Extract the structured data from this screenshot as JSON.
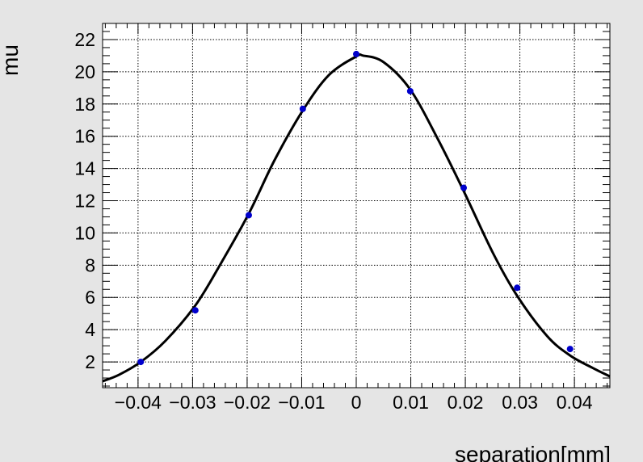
{
  "chart_data": {
    "type": "scatter",
    "xlabel": "separation[mm]",
    "ylabel": "mu",
    "xlim": [
      -0.0465,
      0.0465
    ],
    "ylim": [
      0.4,
      23.0
    ],
    "xticks": [
      -0.04,
      -0.03,
      -0.02,
      -0.01,
      0,
      0.01,
      0.02,
      0.03,
      0.04
    ],
    "xtick_labels": [
      "−0.04",
      "−0.03",
      "−0.02",
      "−0.01",
      "0",
      "0.01",
      "0.02",
      "0.03",
      "0.04"
    ],
    "yticks": [
      2,
      4,
      6,
      8,
      10,
      12,
      14,
      16,
      18,
      20,
      22
    ],
    "ytick_labels": [
      "2",
      "4",
      "6",
      "8",
      "10",
      "12",
      "14",
      "16",
      "18",
      "20",
      "22"
    ],
    "grid": true,
    "series": [
      {
        "kind": "points",
        "color": "#0000cc",
        "x": [
          -0.0395,
          -0.0295,
          -0.0197,
          -0.0098,
          0.0,
          0.0099,
          0.0197,
          0.0295,
          0.0392
        ],
        "y": [
          2.0,
          5.2,
          11.1,
          17.7,
          21.1,
          18.8,
          12.8,
          6.6,
          2.8
        ]
      },
      {
        "kind": "fit_curve",
        "color": "#000000",
        "x": [
          -0.0465,
          -0.0435,
          -0.0395,
          -0.035,
          -0.0295,
          -0.025,
          -0.0197,
          -0.015,
          -0.0098,
          -0.005,
          0.0,
          0.0013,
          0.005,
          0.0099,
          0.015,
          0.0197,
          0.025,
          0.0295,
          0.035,
          0.0392,
          0.0435,
          0.0465
        ],
        "y": [
          0.8,
          1.2,
          2.0,
          3.3,
          5.5,
          8.0,
          11.2,
          14.5,
          17.6,
          19.8,
          20.95,
          21.0,
          20.6,
          18.9,
          15.8,
          12.6,
          8.8,
          6.1,
          3.6,
          2.4,
          1.6,
          1.1
        ]
      }
    ]
  }
}
